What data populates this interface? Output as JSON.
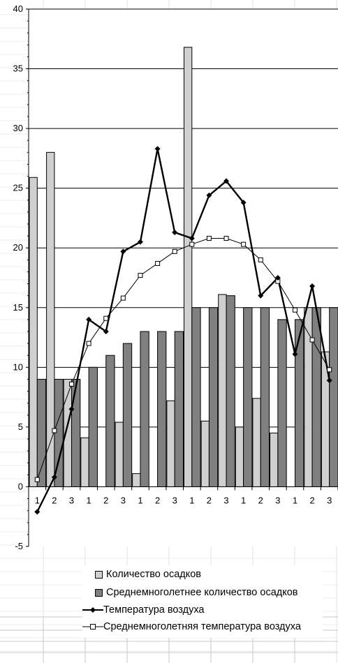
{
  "chart_data": {
    "type": "bar",
    "categories": [
      "1",
      "2",
      "3",
      "1",
      "2",
      "3",
      "1",
      "2",
      "3",
      "1",
      "2",
      "3",
      "1",
      "2",
      "3",
      "1",
      "2",
      "3"
    ],
    "ylim": [
      -5,
      40
    ],
    "yticks": [
      -5,
      0,
      5,
      10,
      15,
      20,
      25,
      30,
      35,
      40
    ],
    "grid": true,
    "legend_position": "bottom",
    "series": [
      {
        "name": "Количество осадков",
        "kind": "bar",
        "color": "#d0d0d0",
        "values": [
          25.9,
          28.0,
          9.0,
          4.1,
          0.0,
          5.4,
          1.1,
          0.0,
          7.2,
          36.8,
          5.5,
          16.1,
          5.0,
          7.4,
          4.5,
          0.0,
          15.0,
          11.3
        ]
      },
      {
        "name": "Среднемноголетнее количество осадков",
        "kind": "bar",
        "color": "#808080",
        "values": [
          9.0,
          9.0,
          9.0,
          10.0,
          11.0,
          12.0,
          13.0,
          13.0,
          13.0,
          15.0,
          15.0,
          16.0,
          15.0,
          15.0,
          14.0,
          14.0,
          15.0,
          15.0
        ]
      },
      {
        "name": "Температура воздуха",
        "kind": "line",
        "color": "#000000",
        "marker": "diamond",
        "values": [
          -2.1,
          0.8,
          6.5,
          14.0,
          13.0,
          19.7,
          20.5,
          28.3,
          21.3,
          20.8,
          24.4,
          25.6,
          23.8,
          16.0,
          17.5,
          11.1,
          16.8,
          8.9
        ]
      },
      {
        "name": "Среднемноголетняя температура воздуха",
        "kind": "line",
        "color": "#000000",
        "marker": "open-square",
        "values": [
          0.6,
          4.7,
          8.6,
          12.0,
          14.1,
          15.8,
          17.7,
          18.7,
          19.7,
          20.3,
          20.8,
          20.8,
          20.3,
          19.0,
          17.2,
          14.8,
          12.3,
          9.8
        ]
      }
    ]
  }
}
